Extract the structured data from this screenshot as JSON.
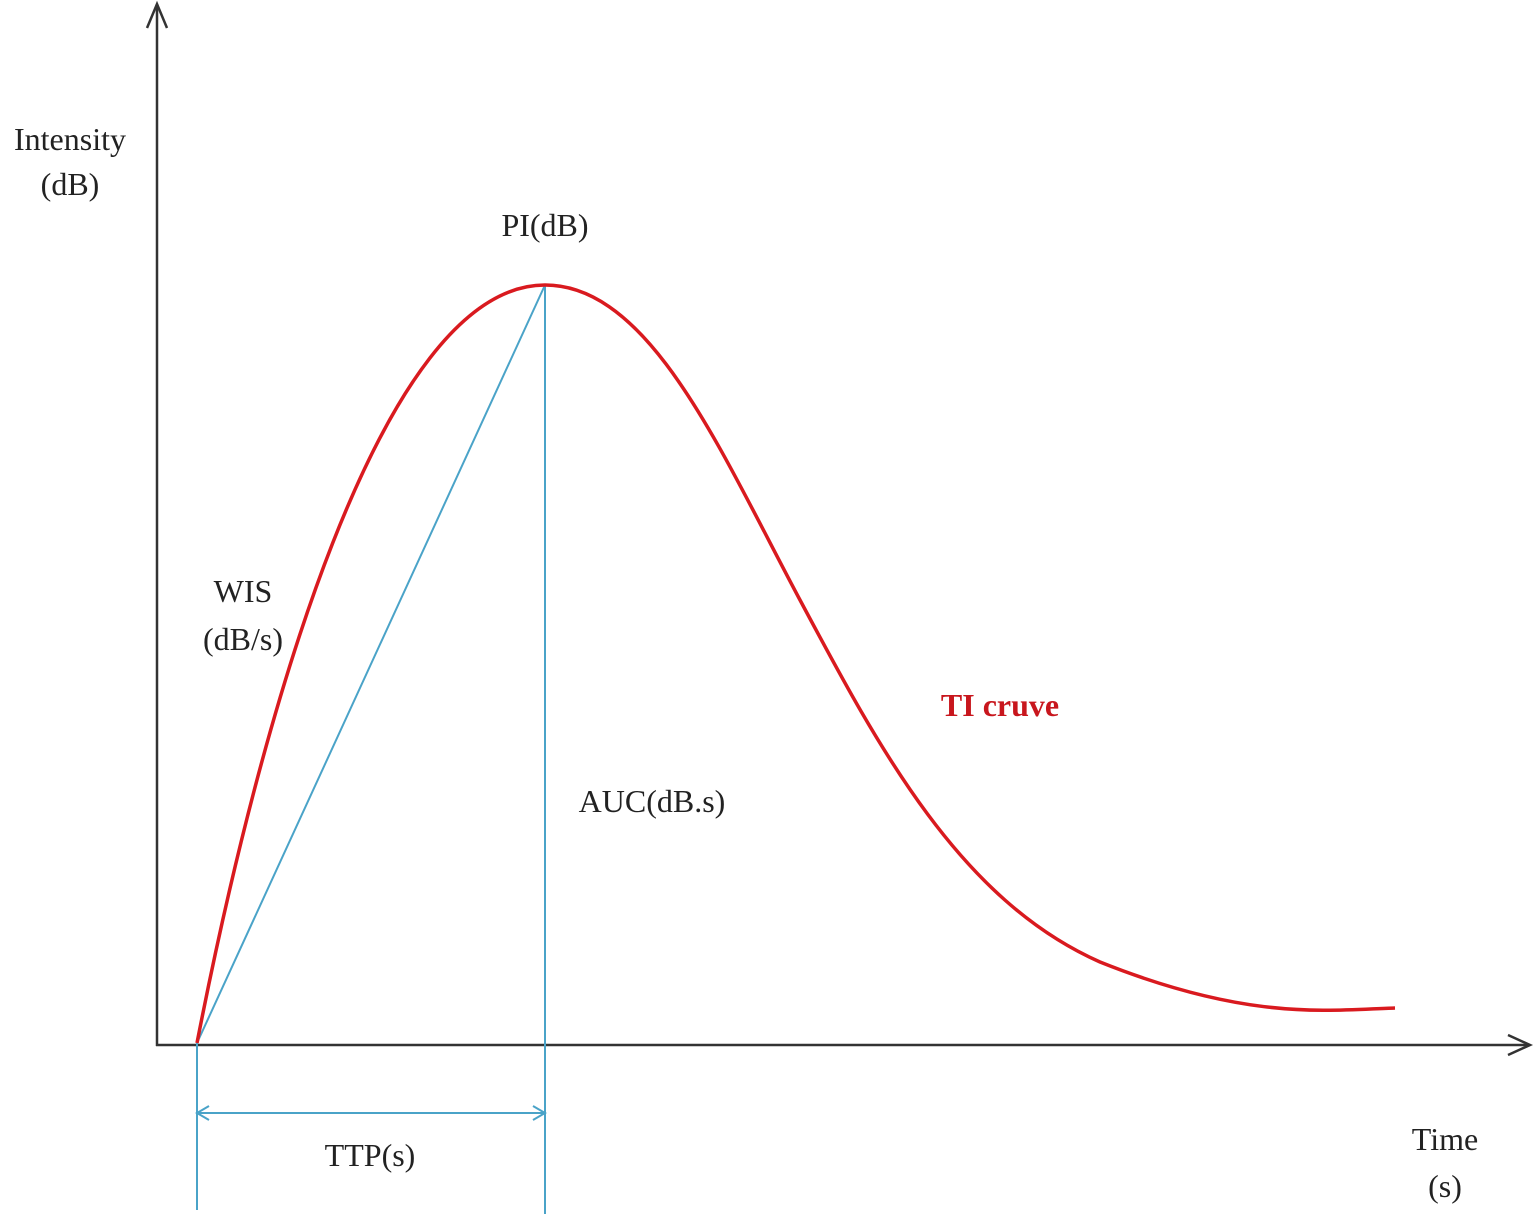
{
  "y_axis": {
    "label": "Intensity",
    "unit": "(dB)"
  },
  "x_axis": {
    "label": "Time",
    "unit": "(s)"
  },
  "annotations": {
    "peak": "PI(dB)",
    "wash_in": "WIS",
    "wash_in_unit": "(dB/s)",
    "curve": "TI cruve",
    "area": "AUC(dB.s)",
    "time_to_peak": "TTP(s)"
  }
}
